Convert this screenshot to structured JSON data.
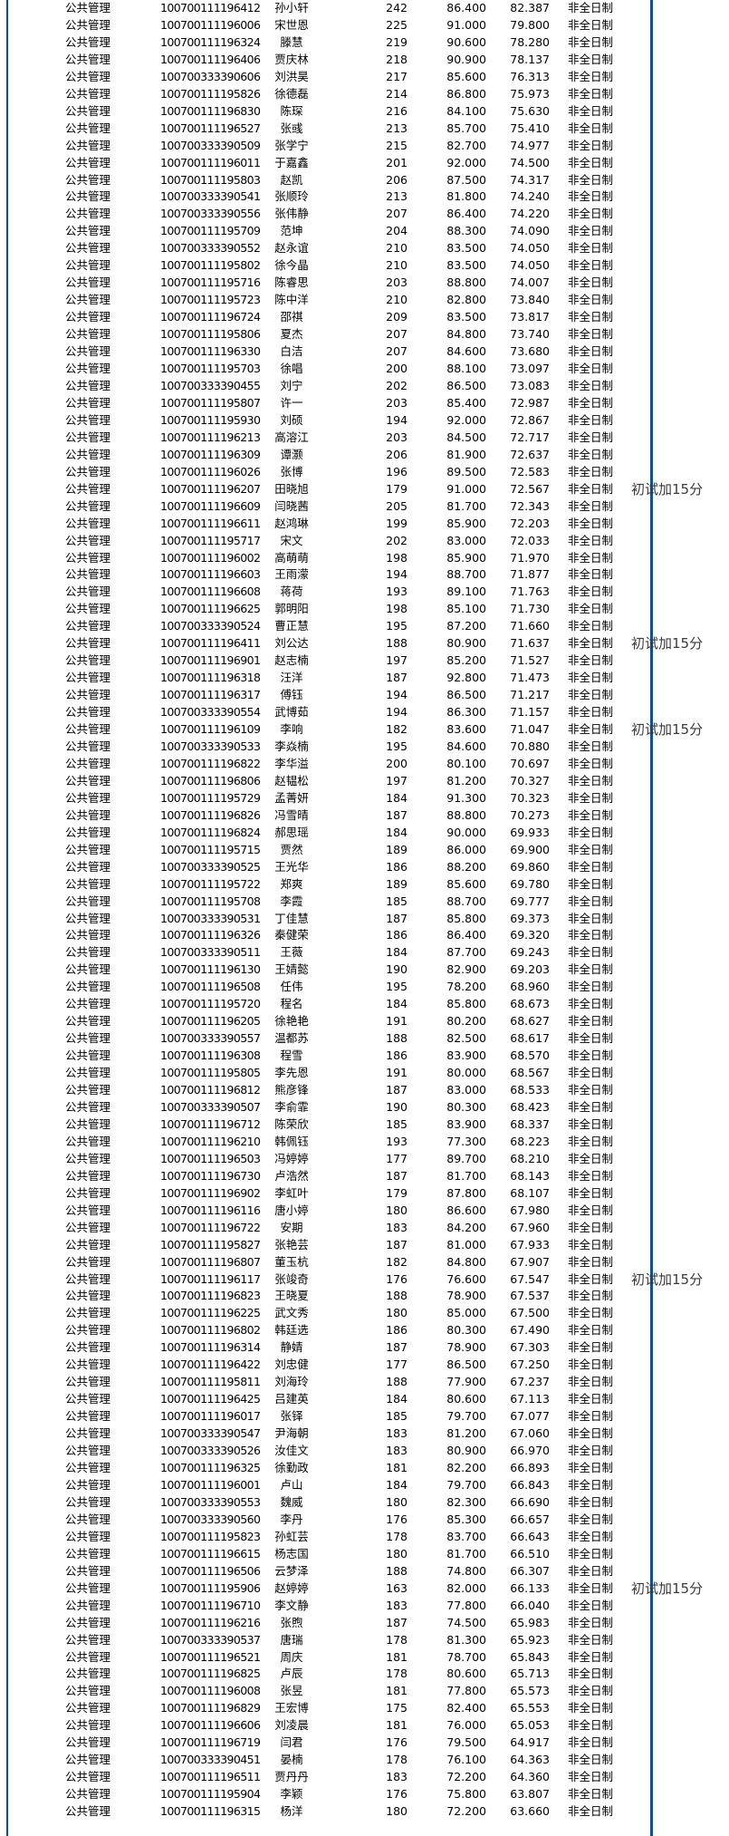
{
  "table": {
    "major_label": "公共管理",
    "study_mode_label": "非全日制",
    "bonus_note_label": "初试加15分",
    "rows": [
      [
        "100700111196412",
        "孙小轩",
        "242",
        "86.400",
        "82.387",
        ""
      ],
      [
        "100700111196006",
        "宋世恩",
        "225",
        "91.000",
        "79.800",
        ""
      ],
      [
        "100700111196324",
        "滕慧",
        "219",
        "90.600",
        "78.280",
        ""
      ],
      [
        "100700111196406",
        "贾庆林",
        "218",
        "90.900",
        "78.137",
        ""
      ],
      [
        "100700333390606",
        "刘洪昊",
        "217",
        "85.600",
        "76.313",
        ""
      ],
      [
        "100700111195826",
        "徐德磊",
        "214",
        "86.800",
        "75.973",
        ""
      ],
      [
        "100700111196830",
        "陈琛",
        "216",
        "84.100",
        "75.630",
        ""
      ],
      [
        "100700111196527",
        "张彧",
        "213",
        "85.700",
        "75.410",
        ""
      ],
      [
        "100700333390509",
        "张学宁",
        "215",
        "82.700",
        "74.977",
        ""
      ],
      [
        "100700111196011",
        "于嘉鑫",
        "201",
        "92.000",
        "74.500",
        ""
      ],
      [
        "100700111195803",
        "赵凯",
        "206",
        "87.500",
        "74.317",
        ""
      ],
      [
        "100700333390541",
        "张顺玲",
        "213",
        "81.800",
        "74.240",
        ""
      ],
      [
        "100700333390556",
        "张伟静",
        "207",
        "86.400",
        "74.220",
        ""
      ],
      [
        "100700111195709",
        "范坤",
        "204",
        "88.300",
        "74.090",
        ""
      ],
      [
        "100700333390552",
        "赵永谊",
        "210",
        "83.500",
        "74.050",
        ""
      ],
      [
        "100700111195802",
        "徐今晶",
        "210",
        "83.500",
        "74.050",
        ""
      ],
      [
        "100700111195716",
        "陈睿思",
        "203",
        "88.800",
        "74.007",
        ""
      ],
      [
        "100700111195723",
        "陈中洋",
        "210",
        "82.800",
        "73.840",
        ""
      ],
      [
        "100700111196724",
        "邵祺",
        "209",
        "83.500",
        "73.817",
        ""
      ],
      [
        "100700111195806",
        "夏杰",
        "207",
        "84.800",
        "73.740",
        ""
      ],
      [
        "100700111196330",
        "白洁",
        "207",
        "84.600",
        "73.680",
        ""
      ],
      [
        "100700111195703",
        "徐唱",
        "200",
        "88.100",
        "73.097",
        ""
      ],
      [
        "100700333390455",
        "刘宁",
        "202",
        "86.500",
        "73.083",
        ""
      ],
      [
        "100700111195807",
        "许一",
        "203",
        "85.400",
        "72.987",
        ""
      ],
      [
        "100700111195930",
        "刘硕",
        "194",
        "92.000",
        "72.867",
        ""
      ],
      [
        "100700111196213",
        "高溶江",
        "203",
        "84.500",
        "72.717",
        ""
      ],
      [
        "100700111196309",
        "谭灏",
        "206",
        "81.900",
        "72.637",
        ""
      ],
      [
        "100700111196026",
        "张博",
        "196",
        "89.500",
        "72.583",
        ""
      ],
      [
        "100700111196207",
        "田晓旭",
        "179",
        "91.000",
        "72.567",
        "初试加15分"
      ],
      [
        "100700111196609",
        "闫晓茜",
        "205",
        "81.700",
        "72.343",
        ""
      ],
      [
        "100700111196611",
        "赵鸿琳",
        "199",
        "85.900",
        "72.203",
        ""
      ],
      [
        "100700111195717",
        "宋文",
        "202",
        "83.000",
        "72.033",
        ""
      ],
      [
        "100700111196002",
        "高萌萌",
        "198",
        "85.900",
        "71.970",
        ""
      ],
      [
        "100700111196603",
        "王雨濛",
        "194",
        "88.700",
        "71.877",
        ""
      ],
      [
        "100700111196608",
        "蒋荷",
        "193",
        "89.100",
        "71.763",
        ""
      ],
      [
        "100700111196625",
        "郭明阳",
        "198",
        "85.100",
        "71.730",
        ""
      ],
      [
        "100700333390524",
        "曹正慧",
        "195",
        "87.200",
        "71.660",
        ""
      ],
      [
        "100700111196411",
        "刘公达",
        "188",
        "80.900",
        "71.637",
        "初试加15分"
      ],
      [
        "100700111196901",
        "赵志楠",
        "197",
        "85.200",
        "71.527",
        ""
      ],
      [
        "100700111196318",
        "汪洋",
        "187",
        "92.800",
        "71.473",
        ""
      ],
      [
        "100700111196317",
        "傅钰",
        "194",
        "86.500",
        "71.217",
        ""
      ],
      [
        "100700333390554",
        "武博茹",
        "194",
        "86.300",
        "71.157",
        ""
      ],
      [
        "100700111196109",
        "李响",
        "182",
        "83.600",
        "71.047",
        "初试加15分"
      ],
      [
        "100700333390533",
        "李焱楠",
        "195",
        "84.600",
        "70.880",
        ""
      ],
      [
        "100700111196822",
        "李华溢",
        "200",
        "80.100",
        "70.697",
        ""
      ],
      [
        "100700111196806",
        "赵韫松",
        "197",
        "81.200",
        "70.327",
        ""
      ],
      [
        "100700111195729",
        "孟菁妍",
        "184",
        "91.300",
        "70.323",
        ""
      ],
      [
        "100700111196826",
        "冯雪晴",
        "187",
        "88.800",
        "70.273",
        ""
      ],
      [
        "100700111196824",
        "郝思瑶",
        "184",
        "90.000",
        "69.933",
        ""
      ],
      [
        "100700111195715",
        "贾然",
        "189",
        "86.000",
        "69.900",
        ""
      ],
      [
        "100700333390525",
        "王光华",
        "186",
        "88.200",
        "69.860",
        ""
      ],
      [
        "100700111195722",
        "郑爽",
        "189",
        "85.600",
        "69.780",
        ""
      ],
      [
        "100700111195708",
        "李霞",
        "185",
        "88.700",
        "69.777",
        ""
      ],
      [
        "100700333390531",
        "丁佳慧",
        "187",
        "85.800",
        "69.373",
        ""
      ],
      [
        "100700111196326",
        "秦健荣",
        "186",
        "86.400",
        "69.320",
        ""
      ],
      [
        "100700333390511",
        "王薇",
        "184",
        "87.700",
        "69.243",
        ""
      ],
      [
        "100700111196130",
        "王婧懿",
        "190",
        "82.900",
        "69.203",
        ""
      ],
      [
        "100700111196508",
        "任伟",
        "195",
        "78.200",
        "68.960",
        ""
      ],
      [
        "100700111195720",
        "程名",
        "184",
        "85.800",
        "68.673",
        ""
      ],
      [
        "100700111196205",
        "徐艳艳",
        "191",
        "80.200",
        "68.627",
        ""
      ],
      [
        "100700333390557",
        "温都苏",
        "188",
        "82.500",
        "68.617",
        ""
      ],
      [
        "100700111196308",
        "程雪",
        "186",
        "83.900",
        "68.570",
        ""
      ],
      [
        "100700111195805",
        "李先恩",
        "191",
        "80.000",
        "68.567",
        ""
      ],
      [
        "100700111196812",
        "熊彦锋",
        "187",
        "83.000",
        "68.533",
        ""
      ],
      [
        "100700333390507",
        "李俞霏",
        "190",
        "80.300",
        "68.423",
        ""
      ],
      [
        "100700111196712",
        "陈荣欣",
        "185",
        "83.900",
        "68.337",
        ""
      ],
      [
        "100700111196210",
        "韩佩钰",
        "193",
        "77.300",
        "68.223",
        ""
      ],
      [
        "100700111196503",
        "冯婷婷",
        "177",
        "89.700",
        "68.210",
        ""
      ],
      [
        "100700111196730",
        "卢浩然",
        "187",
        "81.700",
        "68.143",
        ""
      ],
      [
        "100700111196902",
        "李虹叶",
        "179",
        "87.800",
        "68.107",
        ""
      ],
      [
        "100700111196116",
        "唐小婷",
        "180",
        "86.600",
        "67.980",
        ""
      ],
      [
        "100700111196722",
        "安期",
        "183",
        "84.200",
        "67.960",
        ""
      ],
      [
        "100700111195827",
        "张艳芸",
        "187",
        "81.000",
        "67.933",
        ""
      ],
      [
        "100700111196807",
        "董玉杭",
        "182",
        "84.800",
        "67.907",
        ""
      ],
      [
        "100700111196117",
        "张竣奇",
        "176",
        "76.600",
        "67.547",
        "初试加15分"
      ],
      [
        "100700111196823",
        "王晓夏",
        "188",
        "78.900",
        "67.537",
        ""
      ],
      [
        "100700111196225",
        "武文秀",
        "180",
        "85.000",
        "67.500",
        ""
      ],
      [
        "100700111196802",
        "韩廷选",
        "186",
        "80.300",
        "67.490",
        ""
      ],
      [
        "100700111196314",
        "静婧",
        "187",
        "78.900",
        "67.303",
        ""
      ],
      [
        "100700111196422",
        "刘忠健",
        "177",
        "86.500",
        "67.250",
        ""
      ],
      [
        "100700111195811",
        "刘海玲",
        "188",
        "77.900",
        "67.237",
        ""
      ],
      [
        "100700111196425",
        "吕建英",
        "184",
        "80.600",
        "67.113",
        ""
      ],
      [
        "100700111196017",
        "张铎",
        "185",
        "79.700",
        "67.077",
        ""
      ],
      [
        "100700333390547",
        "尹海朝",
        "183",
        "81.200",
        "67.060",
        ""
      ],
      [
        "100700333390526",
        "汝佳文",
        "183",
        "80.900",
        "66.970",
        ""
      ],
      [
        "100700111196325",
        "徐勤政",
        "181",
        "82.200",
        "66.893",
        ""
      ],
      [
        "100700111196001",
        "卢山",
        "184",
        "79.700",
        "66.843",
        ""
      ],
      [
        "100700333390553",
        "魏威",
        "180",
        "82.300",
        "66.690",
        ""
      ],
      [
        "100700333390560",
        "李丹",
        "176",
        "85.300",
        "66.657",
        ""
      ],
      [
        "100700111195823",
        "孙虹芸",
        "178",
        "83.700",
        "66.643",
        ""
      ],
      [
        "100700111196615",
        "杨志国",
        "180",
        "81.700",
        "66.510",
        ""
      ],
      [
        "100700111196506",
        "云梦泽",
        "188",
        "74.800",
        "66.307",
        ""
      ],
      [
        "100700111195906",
        "赵婷婷",
        "163",
        "82.000",
        "66.133",
        "初试加15分"
      ],
      [
        "100700111196710",
        "李文静",
        "183",
        "77.800",
        "66.040",
        ""
      ],
      [
        "100700111196216",
        "张煦",
        "187",
        "74.500",
        "65.983",
        ""
      ],
      [
        "100700333390537",
        "唐瑞",
        "178",
        "81.300",
        "65.923",
        ""
      ],
      [
        "100700111196521",
        "周庆",
        "181",
        "78.700",
        "65.843",
        ""
      ],
      [
        "100700111196825",
        "卢辰",
        "178",
        "80.600",
        "65.713",
        ""
      ],
      [
        "100700111196008",
        "张昱",
        "181",
        "77.800",
        "65.573",
        ""
      ],
      [
        "100700111196829",
        "王宏博",
        "175",
        "82.400",
        "65.553",
        ""
      ],
      [
        "100700111196606",
        "刘凌晨",
        "181",
        "76.000",
        "65.053",
        ""
      ],
      [
        "100700111196719",
        "闫君",
        "176",
        "79.500",
        "64.917",
        ""
      ],
      [
        "100700333390451",
        "晏楠",
        "178",
        "76.100",
        "64.363",
        ""
      ],
      [
        "100700111196511",
        "贾丹丹",
        "183",
        "72.200",
        "64.360",
        ""
      ],
      [
        "100700111195904",
        "李颖",
        "176",
        "75.800",
        "63.807",
        ""
      ],
      [
        "100700111196315",
        "杨洋",
        "180",
        "72.200",
        "63.660",
        ""
      ]
    ]
  },
  "colors": {
    "border_blue": "#0054a6"
  }
}
